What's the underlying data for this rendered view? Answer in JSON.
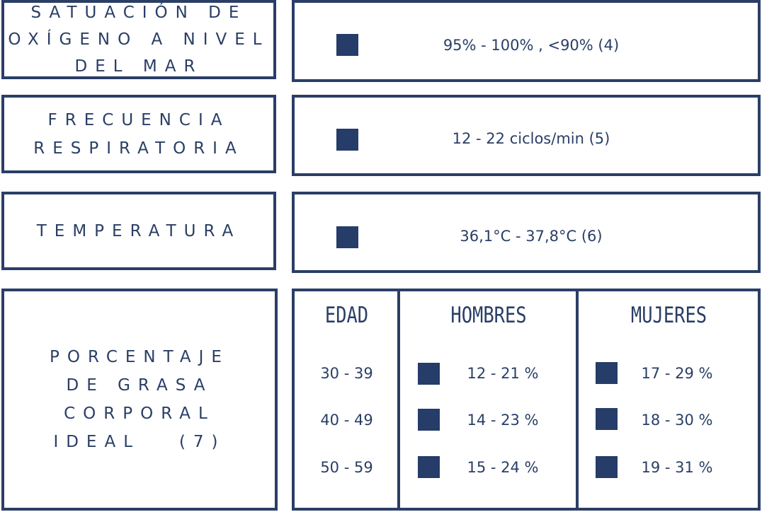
{
  "rows": [
    {
      "label_lines": [
        "SATUACIÓN DE",
        "OXÍGENO A NIVEL",
        "DEL MAR"
      ],
      "value": "95% - 100% , <90%   (4)"
    },
    {
      "label_lines": [
        "FRECUENCIA",
        "RESPIRATORIA"
      ],
      "value": "12 - 22 ciclos/min   (5)"
    },
    {
      "label_lines": [
        "TEMPERATURA"
      ],
      "value": "36,1°C - 37,8°C   (6)"
    }
  ],
  "fat": {
    "label_lines": [
      "PORCENTAJE",
      "DE GRASA",
      "CORPORAL",
      "IDEAL   (7)"
    ],
    "headers": {
      "age": "EDAD",
      "men": "HOMBRES",
      "women": "MUJERES"
    },
    "ages": [
      "30 - 39",
      "40 - 49",
      "50 - 59"
    ],
    "men": [
      "12 - 21 %",
      "14 - 23 %",
      "15 - 24 %"
    ],
    "women": [
      "17 - 29 %",
      "18 - 30 %",
      "19 - 31 %"
    ]
  },
  "colors": {
    "accent": "#2a3e66",
    "marker": "#263c69"
  }
}
